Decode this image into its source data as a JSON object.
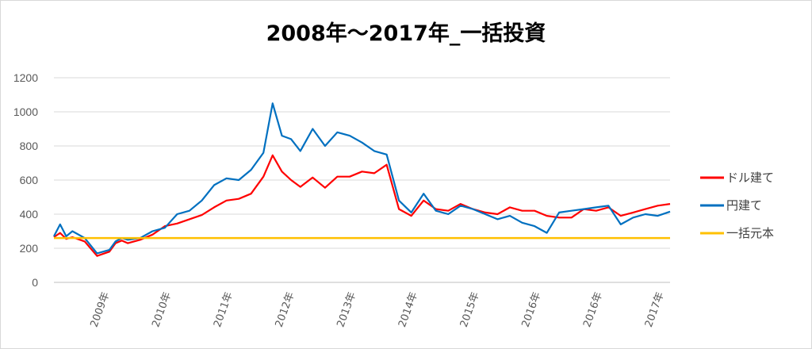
{
  "chart_data": {
    "type": "line",
    "title": "2008年～2017年_一括投資",
    "xlabel": "",
    "ylabel": "",
    "ylim": [
      0,
      1200
    ],
    "yticks": [
      0,
      200,
      400,
      600,
      800,
      1000,
      1200
    ],
    "grid": true,
    "legend_position": "right",
    "x_tick_labels": [
      "2009年",
      "2010年",
      "2011年",
      "2012年",
      "2013年",
      "2014年",
      "2015年",
      "2016年",
      "2016年",
      "2017年"
    ],
    "x": [
      2008.0,
      2008.1,
      2008.2,
      2008.3,
      2008.5,
      2008.7,
      2008.9,
      2009.0,
      2009.1,
      2009.2,
      2009.4,
      2009.6,
      2009.8,
      2010.0,
      2010.2,
      2010.4,
      2010.6,
      2010.8,
      2011.0,
      2011.2,
      2011.4,
      2011.55,
      2011.7,
      2011.85,
      2012.0,
      2012.2,
      2012.4,
      2012.6,
      2012.8,
      2013.0,
      2013.2,
      2013.4,
      2013.6,
      2013.8,
      2014.0,
      2014.2,
      2014.4,
      2014.6,
      2014.8,
      2015.0,
      2015.2,
      2015.4,
      2015.6,
      2015.8,
      2016.0,
      2016.2,
      2016.4,
      2016.6,
      2016.8,
      2017.0,
      2017.2,
      2017.4,
      2017.6,
      2017.8,
      2018.0
    ],
    "series": [
      {
        "name": "ドル建て",
        "color": "#ff0000",
        "values": [
          265,
          290,
          255,
          265,
          240,
          155,
          180,
          230,
          245,
          230,
          250,
          280,
          330,
          345,
          370,
          395,
          440,
          480,
          490,
          520,
          620,
          745,
          650,
          600,
          560,
          615,
          555,
          620,
          620,
          650,
          640,
          690,
          430,
          390,
          480,
          430,
          420,
          460,
          430,
          410,
          400,
          440,
          420,
          420,
          390,
          380,
          380,
          430,
          420,
          440,
          390,
          410,
          430,
          450,
          460
        ]
      },
      {
        "name": "円建て",
        "color": "#0070c0",
        "values": [
          270,
          340,
          270,
          300,
          260,
          170,
          190,
          240,
          260,
          250,
          260,
          300,
          320,
          400,
          420,
          480,
          570,
          610,
          600,
          660,
          760,
          1050,
          860,
          840,
          770,
          900,
          800,
          880,
          860,
          820,
          770,
          750,
          480,
          410,
          520,
          420,
          400,
          450,
          430,
          400,
          370,
          390,
          350,
          330,
          290,
          410,
          420,
          430,
          440,
          450,
          340,
          380,
          400,
          390,
          415
        ]
      },
      {
        "name": "一括元本",
        "color": "#ffc000",
        "values": [
          260,
          260,
          260,
          260,
          260,
          260,
          260,
          260,
          260,
          260,
          260,
          260,
          260,
          260,
          260,
          260,
          260,
          260,
          260,
          260,
          260,
          260,
          260,
          260,
          260,
          260,
          260,
          260,
          260,
          260,
          260,
          260,
          260,
          260,
          260,
          260,
          260,
          260,
          260,
          260,
          260,
          260,
          260,
          260,
          260,
          260,
          260,
          260,
          260,
          260,
          260,
          260,
          260,
          260,
          260
        ]
      }
    ]
  }
}
